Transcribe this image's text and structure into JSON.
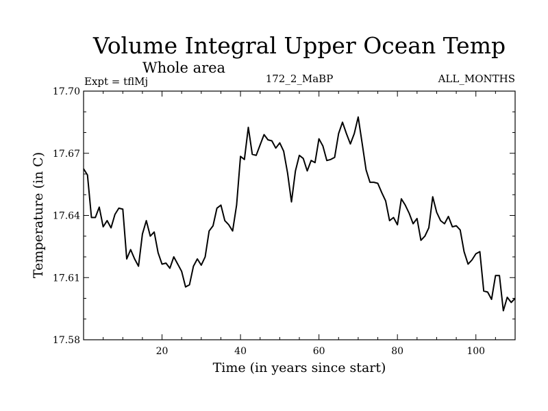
{
  "chart_data": {
    "type": "line",
    "title": "Volume Integral Upper Ocean Temp",
    "subtitle": "Whole area",
    "header_left": "Expt = tflMj",
    "header_center": "172_2_MaBP",
    "header_right": "ALL_MONTHS",
    "xlabel": "Time (in years since start)",
    "ylabel": "Temperature (in C)",
    "xlim": [
      0,
      110
    ],
    "ylim": [
      17.58,
      17.7
    ],
    "xticks": [
      20,
      40,
      60,
      80,
      100
    ],
    "xtick_labels": [
      "20",
      "40",
      "60",
      "80",
      "100"
    ],
    "yticks": [
      17.58,
      17.61,
      17.64,
      17.67,
      17.7
    ],
    "ytick_labels": [
      "17.58",
      "17.61",
      "17.64",
      "17.67",
      "17.70"
    ],
    "series": [
      {
        "name": "Volume Integral Upper Ocean Temp",
        "x": [
          0,
          1,
          2,
          3,
          4,
          5,
          6,
          7,
          8,
          9,
          10,
          11,
          12,
          13,
          14,
          15,
          16,
          17,
          18,
          19,
          20,
          21,
          22,
          23,
          24,
          25,
          26,
          27,
          28,
          29,
          30,
          31,
          32,
          33,
          34,
          35,
          36,
          37,
          38,
          39,
          40,
          41,
          42,
          43,
          44,
          45,
          46,
          47,
          48,
          49,
          50,
          51,
          52,
          53,
          54,
          55,
          56,
          57,
          58,
          59,
          60,
          61,
          62,
          63,
          64,
          65,
          66,
          67,
          68,
          69,
          70,
          71,
          72,
          73,
          74,
          75,
          76,
          77,
          78,
          79,
          80,
          81,
          82,
          83,
          84,
          85,
          86,
          87,
          88,
          89,
          90,
          91,
          92,
          93,
          94,
          95,
          96,
          97,
          98,
          99,
          100,
          101,
          102,
          103,
          104,
          105,
          106,
          107,
          108,
          109,
          110
        ],
        "values": [
          17.6625,
          17.6595,
          17.639,
          17.639,
          17.644,
          17.6345,
          17.6375,
          17.634,
          17.6405,
          17.6435,
          17.643,
          17.619,
          17.6235,
          17.619,
          17.6155,
          17.631,
          17.6375,
          17.63,
          17.632,
          17.622,
          17.6165,
          17.617,
          17.6145,
          17.62,
          17.6165,
          17.613,
          17.6055,
          17.6065,
          17.6155,
          17.619,
          17.616,
          17.62,
          17.6325,
          17.635,
          17.6435,
          17.645,
          17.6375,
          17.6355,
          17.6325,
          17.645,
          17.6685,
          17.667,
          17.6825,
          17.6695,
          17.669,
          17.674,
          17.679,
          17.6765,
          17.676,
          17.6725,
          17.675,
          17.671,
          17.6605,
          17.6465,
          17.6615,
          17.669,
          17.6675,
          17.6615,
          17.6665,
          17.6655,
          17.677,
          17.6735,
          17.6665,
          17.667,
          17.668,
          17.6795,
          17.685,
          17.6795,
          17.6745,
          17.6795,
          17.6875,
          17.675,
          17.662,
          17.656,
          17.656,
          17.6555,
          17.651,
          17.647,
          17.6375,
          17.639,
          17.6355,
          17.648,
          17.645,
          17.641,
          17.636,
          17.6385,
          17.628,
          17.63,
          17.634,
          17.649,
          17.6415,
          17.6375,
          17.636,
          17.6395,
          17.6345,
          17.635,
          17.633,
          17.6225,
          17.6165,
          17.6185,
          17.6215,
          17.6225,
          17.6035,
          17.603,
          17.5995,
          17.611,
          17.611,
          17.594,
          17.6005,
          17.598,
          17.6
        ]
      }
    ]
  }
}
